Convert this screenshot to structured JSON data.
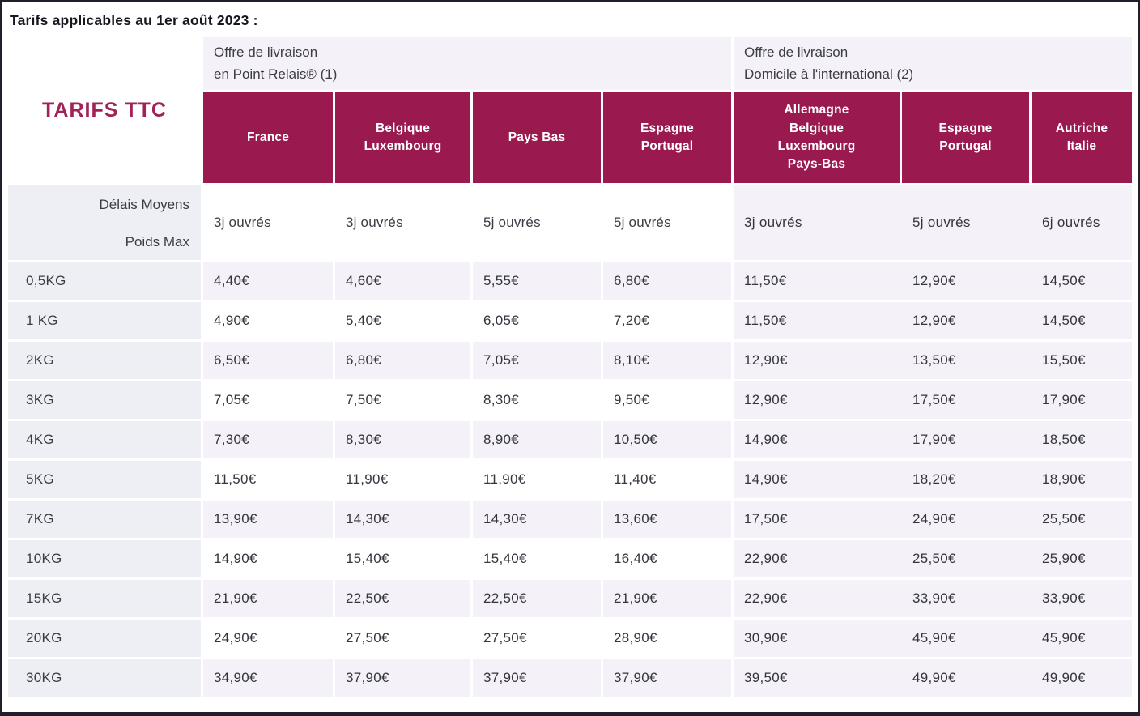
{
  "title": "Tarifs applicables au 1er août 2023 :",
  "colors": {
    "accent_maroon": "#9a1a4f",
    "corner_text": "#a02257",
    "row_gray": "#f4f2f8",
    "label_gray": "#edeff5",
    "frame_border": "#20202b"
  },
  "table": {
    "corner_label": "TARIFS TTC",
    "groups": [
      {
        "line1": "Offre de livraison",
        "line2": "en Point Relais® (1)"
      },
      {
        "line1": "Offre de livraison",
        "line2": "Domicile à l'international (2)"
      }
    ],
    "columns": [
      {
        "label": "France",
        "delay": "3j ouvrés"
      },
      {
        "label": "Belgique\nLuxembourg",
        "delay": "3j ouvrés"
      },
      {
        "label": "Pays Bas",
        "delay": "5j ouvrés"
      },
      {
        "label": "Espagne\nPortugal",
        "delay": "5j ouvrés"
      },
      {
        "label": "Allemagne\nBelgique\nLuxembourg\nPays-Bas",
        "delay": "3j ouvrés"
      },
      {
        "label": "Espagne\nPortugal",
        "delay": "5j ouvrés"
      },
      {
        "label": "Autriche\nItalie",
        "delay": "6j ouvrés"
      }
    ],
    "row_header": {
      "line1": "Délais Moyens",
      "line2": "Poids Max"
    },
    "rows": [
      {
        "weight": "0,5KG",
        "values": [
          "4,40€",
          "4,60€",
          "5,55€",
          "6,80€",
          "11,50€",
          "12,90€",
          "14,50€"
        ]
      },
      {
        "weight": "1 KG",
        "values": [
          "4,90€",
          "5,40€",
          "6,05€",
          "7,20€",
          "11,50€",
          "12,90€",
          "14,50€"
        ]
      },
      {
        "weight": "2KG",
        "values": [
          "6,50€",
          "6,80€",
          "7,05€",
          "8,10€",
          "12,90€",
          "13,50€",
          "15,50€"
        ]
      },
      {
        "weight": "3KG",
        "values": [
          "7,05€",
          "7,50€",
          "8,30€",
          "9,50€",
          "12,90€",
          "17,50€",
          "17,90€"
        ]
      },
      {
        "weight": "4KG",
        "values": [
          "7,30€",
          "8,30€",
          "8,90€",
          "10,50€",
          "14,90€",
          "17,90€",
          "18,50€"
        ]
      },
      {
        "weight": "5KG",
        "values": [
          "11,50€",
          "11,90€",
          "11,90€",
          "11,40€",
          "14,90€",
          "18,20€",
          "18,90€"
        ]
      },
      {
        "weight": "7KG",
        "values": [
          "13,90€",
          "14,30€",
          "14,30€",
          "13,60€",
          "17,50€",
          "24,90€",
          "25,50€"
        ]
      },
      {
        "weight": "10KG",
        "values": [
          "14,90€",
          "15,40€",
          "15,40€",
          "16,40€",
          "22,90€",
          "25,50€",
          "25,90€"
        ]
      },
      {
        "weight": "15KG",
        "values": [
          "21,90€",
          "22,50€",
          "22,50€",
          "21,90€",
          "22,90€",
          "33,90€",
          "33,90€"
        ]
      },
      {
        "weight": "20KG",
        "values": [
          "24,90€",
          "27,50€",
          "27,50€",
          "28,90€",
          "30,90€",
          "45,90€",
          "45,90€"
        ]
      },
      {
        "weight": "30KG",
        "values": [
          "34,90€",
          "37,90€",
          "37,90€",
          "37,90€",
          "39,50€",
          "49,90€",
          "49,90€"
        ]
      }
    ]
  }
}
